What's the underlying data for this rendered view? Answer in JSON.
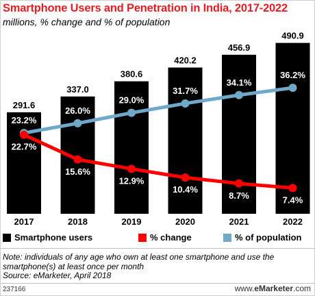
{
  "title": "Smartphone Users and Penetration in India, 2017-2022",
  "subtitle": "millions, % change and % of population",
  "colors": {
    "bars": "#000000",
    "change": "#ff0000",
    "population": "#6fa8c8",
    "title": "#e31e24"
  },
  "chart_data": {
    "type": "bar",
    "categories": [
      "2017",
      "2018",
      "2019",
      "2020",
      "2021",
      "2022"
    ],
    "series": [
      {
        "name": "Smartphone users",
        "type": "bar",
        "values": [
          291.6,
          337.0,
          380.6,
          420.2,
          456.9,
          490.9
        ],
        "labels": [
          "291.6",
          "337.0",
          "380.6",
          "420.2",
          "456.9",
          "490.9"
        ]
      },
      {
        "name": "% change",
        "type": "line",
        "values": [
          22.7,
          15.6,
          12.9,
          10.4,
          8.7,
          7.4
        ],
        "labels": [
          "22.7%",
          "15.6%",
          "12.9%",
          "10.4%",
          "8.7%",
          "7.4%"
        ]
      },
      {
        "name": "% of population",
        "type": "line",
        "values": [
          23.2,
          26.0,
          29.0,
          31.7,
          34.1,
          36.2
        ],
        "labels": [
          "23.2%",
          "26.0%",
          "29.0%",
          "31.7%",
          "34.1%",
          "36.2%"
        ]
      }
    ],
    "ylim_bars": [
      0,
      500
    ],
    "ylim_lines": [
      0,
      50
    ],
    "legend_position": "bottom",
    "grid": false
  },
  "note": "Note: individuals of any age who own at least one smartphone and use the smartphone(s) at least once per month",
  "source": "Source: eMarketer, April 2018",
  "footer_id": "237166",
  "brand": {
    "prefix": "www.",
    "name": "eMarketer",
    "suffix": ".com"
  }
}
